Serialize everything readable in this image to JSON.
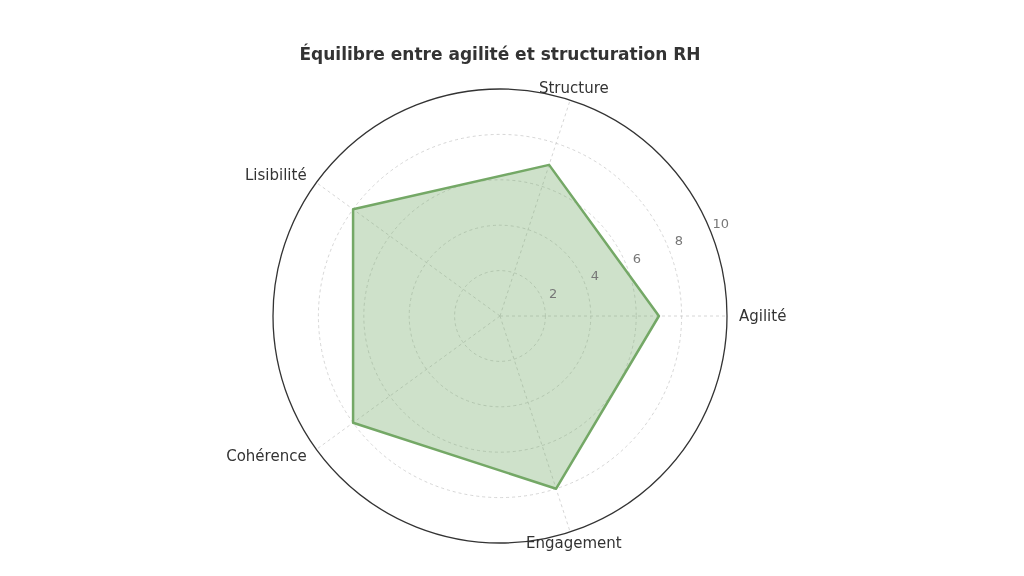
{
  "chart_data": {
    "type": "radar",
    "title": "Équilibre entre agilité et structuration RH",
    "categories": [
      "Structure",
      "Agilité",
      "Engagement",
      "Cohérence",
      "Lisibilité"
    ],
    "series": [
      {
        "color": "#74a866",
        "values": [
          7,
          7,
          8,
          8,
          8
        ]
      }
    ],
    "ylim": [
      0,
      10
    ],
    "yticks": [
      2,
      4,
      6,
      8,
      10
    ],
    "grid": true
  }
}
